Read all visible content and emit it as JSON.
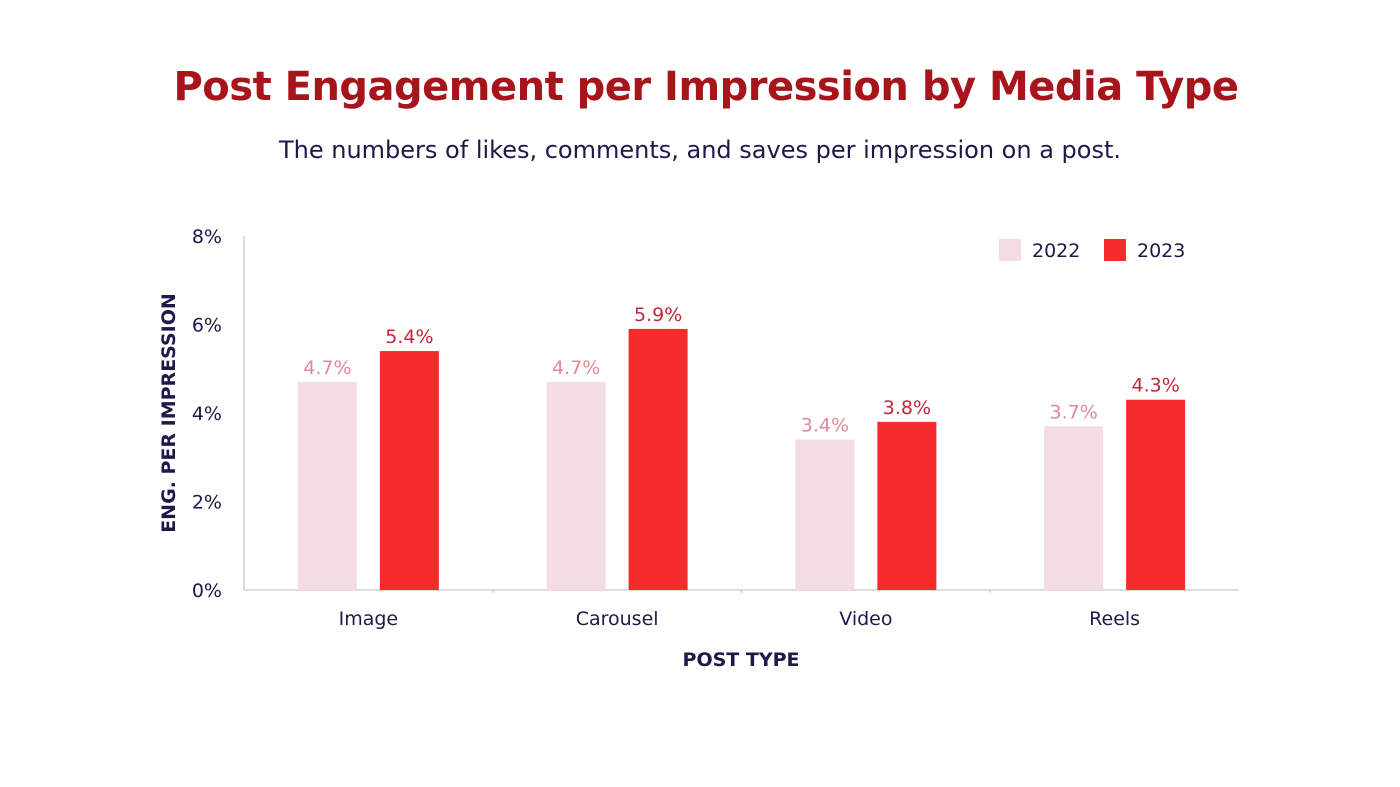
{
  "header": {
    "title": "Post Engagement per Impression by Media Type",
    "subtitle": "The numbers of likes, comments, and saves per impression on a post."
  },
  "colors": {
    "title": "#a8141b",
    "text": "#1d1a4a",
    "series_2022": "#f4dde2",
    "series_2023": "#f52d2a",
    "label_2022": "#e08a98",
    "label_2023": "#c0283a",
    "axis": "#bbbbbb"
  },
  "chart_data": {
    "type": "bar",
    "title": "Post Engagement per Impression by Media Type",
    "subtitle": "The numbers of likes, comments, and saves per impression on a post.",
    "xlabel": "POST TYPE",
    "ylabel": "ENG. PER IMPRESSION",
    "categories": [
      "Image",
      "Carousel",
      "Video",
      "Reels"
    ],
    "series": [
      {
        "name": "2022",
        "values": [
          4.7,
          4.7,
          3.4,
          3.7
        ],
        "labels": [
          "4.7%",
          "4.7%",
          "3.4%",
          "3.7%"
        ]
      },
      {
        "name": "2023",
        "values": [
          5.4,
          5.9,
          3.8,
          4.3
        ],
        "labels": [
          "5.4%",
          "5.9%",
          "3.8%",
          "4.3%"
        ]
      }
    ],
    "ylim": [
      0,
      8
    ],
    "yticks": [
      0,
      2,
      4,
      6,
      8
    ],
    "ytick_labels": [
      "0%",
      "2%",
      "4%",
      "6%",
      "8%"
    ],
    "legend": "top-right",
    "grid": false
  }
}
